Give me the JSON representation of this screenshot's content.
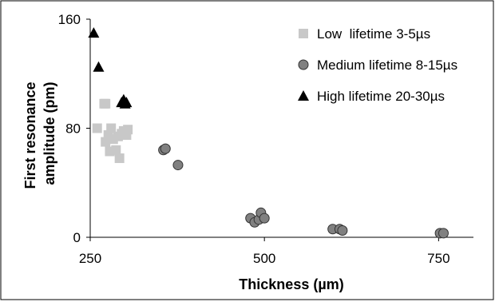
{
  "chart_data": {
    "type": "scatter",
    "title": "",
    "xlabel": "Thickness (µm)",
    "ylabel": "First resonance amplitude (pm)",
    "ylabel_lines": [
      "First resonance",
      "amplitude (pm)"
    ],
    "xlim": [
      250,
      800
    ],
    "ylim": [
      0,
      160
    ],
    "x_ticks": [
      250,
      500,
      750
    ],
    "y_ticks": [
      0,
      80,
      160
    ],
    "grid": false,
    "legend_position": "top-right",
    "series": [
      {
        "name": "Low  lifetime 3-5µs",
        "marker": "square",
        "color": "#c8c8c8",
        "points": [
          {
            "x": 260,
            "y": 80
          },
          {
            "x": 270,
            "y": 98
          },
          {
            "x": 272,
            "y": 98
          },
          {
            "x": 272,
            "y": 70
          },
          {
            "x": 276,
            "y": 75
          },
          {
            "x": 278,
            "y": 63
          },
          {
            "x": 280,
            "y": 80
          },
          {
            "x": 283,
            "y": 72
          },
          {
            "x": 287,
            "y": 64
          },
          {
            "x": 290,
            "y": 74
          },
          {
            "x": 292,
            "y": 58
          },
          {
            "x": 295,
            "y": 76
          },
          {
            "x": 298,
            "y": 78
          },
          {
            "x": 302,
            "y": 75
          },
          {
            "x": 304,
            "y": 79
          }
        ]
      },
      {
        "name": "Medium lifetime 8-15µs",
        "marker": "circle",
        "color": "#808080",
        "points": [
          {
            "x": 355,
            "y": 64
          },
          {
            "x": 358,
            "y": 65
          },
          {
            "x": 376,
            "y": 53
          },
          {
            "x": 480,
            "y": 14
          },
          {
            "x": 486,
            "y": 11
          },
          {
            "x": 492,
            "y": 13
          },
          {
            "x": 495,
            "y": 18
          },
          {
            "x": 500,
            "y": 14
          },
          {
            "x": 598,
            "y": 6
          },
          {
            "x": 608,
            "y": 6
          },
          {
            "x": 612,
            "y": 5
          },
          {
            "x": 752,
            "y": 3
          },
          {
            "x": 757,
            "y": 3
          }
        ]
      },
      {
        "name": "High lifetime 20-30µs",
        "marker": "triangle",
        "color": "#000000",
        "points": [
          {
            "x": 255,
            "y": 150
          },
          {
            "x": 262,
            "y": 125
          },
          {
            "x": 295,
            "y": 99
          },
          {
            "x": 298,
            "y": 101
          },
          {
            "x": 300,
            "y": 98
          },
          {
            "x": 302,
            "y": 99
          }
        ]
      }
    ]
  }
}
